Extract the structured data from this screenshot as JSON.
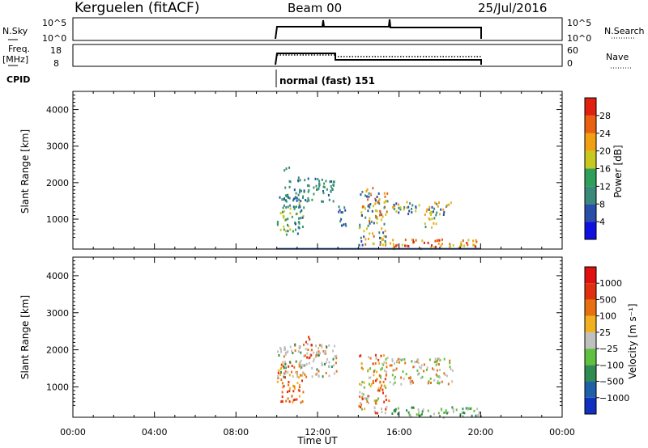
{
  "header": {
    "station": "Kerguelen (fitACF)",
    "beam": "Beam 00",
    "date": "25/Jul/2016"
  },
  "top_panels": {
    "nsky_label": "N.Sky",
    "nsky_ticks": [
      "10^5",
      "10^0"
    ],
    "nsearch_label": "N.Search",
    "nsearch_ticks": [
      "10^5",
      "10^0"
    ],
    "freq_label": "Freq.",
    "freq_unit": "[MHz]",
    "freq_ticks": [
      "18",
      "8"
    ],
    "nave_label": "Nave",
    "nave_ticks": [
      "60",
      "0"
    ],
    "cpid_label": "CPID",
    "cpid_text": "normal (fast) 151",
    "op_start_hour": 10,
    "op_end_hour": 20,
    "freq_step_hour": 13
  },
  "chart_data": [
    {
      "type": "heatmap",
      "name": "power-panel",
      "ylabel": "Slant Range [km]",
      "xlabel": "Time UT",
      "xlim": [
        0,
        24
      ],
      "ylim": [
        180,
        4500
      ],
      "ytick_labels": [
        "1000",
        "2000",
        "3000",
        "4000"
      ],
      "colorbar": {
        "label": "Power [dB]",
        "tick_labels": [
          "4",
          "8",
          "12",
          "16",
          "20",
          "24",
          "28"
        ],
        "colors": [
          "#1010e0",
          "#2a4fa8",
          "#3a8a7a",
          "#2ea05a",
          "#c8c820",
          "#f0a010",
          "#e86010",
          "#e02010"
        ]
      },
      "clusters": [
        {
          "t": [
            10.0,
            11.3
          ],
          "r": [
            600,
            1700
          ],
          "c": [
            1,
            2,
            3,
            4
          ]
        },
        {
          "t": [
            10.3,
            12.8
          ],
          "r": [
            1500,
            2200
          ],
          "c": [
            1,
            2,
            2,
            3
          ]
        },
        {
          "t": [
            10.3,
            10.6
          ],
          "r": [
            2250,
            2450
          ],
          "c": [
            1,
            2
          ]
        },
        {
          "t": [
            13.0,
            13.4
          ],
          "r": [
            700,
            1400
          ],
          "c": [
            1,
            2
          ]
        },
        {
          "t": [
            14.0,
            15.4
          ],
          "r": [
            300,
            1900
          ],
          "c": [
            1,
            2,
            4,
            5,
            6
          ]
        },
        {
          "t": [
            15.6,
            18.6
          ],
          "r": [
            1150,
            1500
          ],
          "c": [
            1,
            2,
            4,
            5
          ]
        },
        {
          "t": [
            17.2,
            17.8
          ],
          "r": [
            800,
            1350
          ],
          "c": [
            2,
            4,
            5
          ]
        },
        {
          "t": [
            15.3,
            20.0
          ],
          "r": [
            200,
            480
          ],
          "c": [
            4,
            5,
            6,
            7
          ]
        }
      ]
    },
    {
      "type": "heatmap",
      "name": "velocity-panel",
      "ylabel": "Slant Range [km]",
      "xlabel": "Time UT",
      "xlim": [
        0,
        24
      ],
      "ylim": [
        180,
        4500
      ],
      "ytick_labels": [
        "1000",
        "2000",
        "3000",
        "4000"
      ],
      "xtick_labels": [
        "00:00",
        "04:00",
        "08:00",
        "12:00",
        "16:00",
        "20:00",
        "00:00"
      ],
      "colorbar": {
        "label": "Velocity [m s⁻¹]",
        "tick_labels": [
          "1000",
          "500",
          "100",
          "25",
          "−25",
          "−100",
          "−500",
          "−1000"
        ],
        "colors": [
          "#1030c0",
          "#2060a8",
          "#2e8c50",
          "#60c040",
          "#c0c0c0",
          "#f0b020",
          "#e87010",
          "#e03010",
          "#e01010"
        ]
      },
      "clusters": [
        {
          "t": [
            10.0,
            11.3
          ],
          "r": [
            600,
            1700
          ],
          "c": [
            5,
            6,
            7
          ]
        },
        {
          "t": [
            10.0,
            12.9
          ],
          "r": [
            1300,
            2200
          ],
          "c": [
            4,
            4,
            4,
            6,
            2
          ]
        },
        {
          "t": [
            11.3,
            11.7
          ],
          "r": [
            1800,
            2450
          ],
          "c": [
            6,
            7
          ]
        },
        {
          "t": [
            14.0,
            15.5
          ],
          "r": [
            300,
            1900
          ],
          "c": [
            4,
            5,
            6,
            7,
            3
          ]
        },
        {
          "t": [
            15.5,
            18.6
          ],
          "r": [
            1100,
            1800
          ],
          "c": [
            4,
            4,
            3,
            6
          ]
        },
        {
          "t": [
            15.3,
            20.0
          ],
          "r": [
            200,
            480
          ],
          "c": [
            3,
            2,
            4
          ]
        }
      ]
    }
  ]
}
